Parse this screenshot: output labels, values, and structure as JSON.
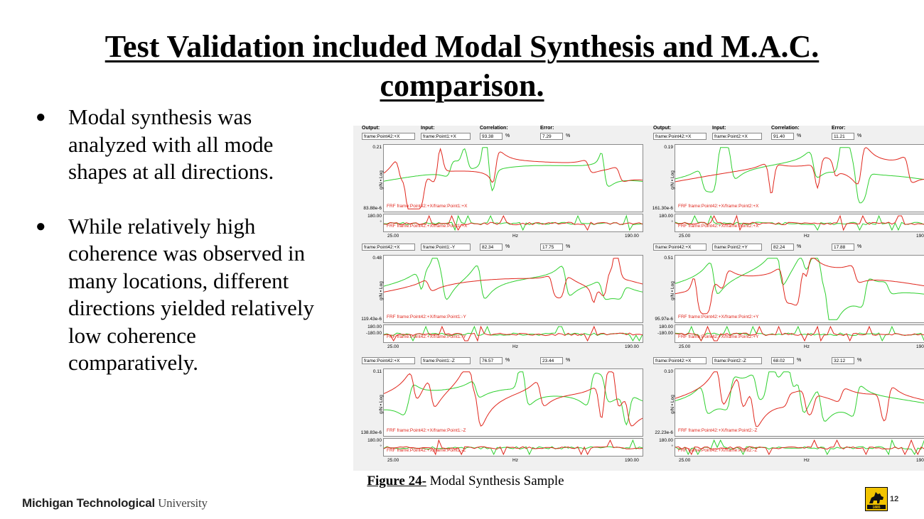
{
  "title": {
    "line1": "Test Validation included Modal Synthesis and M.A.C.",
    "line2": "comparison."
  },
  "bullets": [
    "Modal synthesis was analyzed with all mode shapes at all directions.",
    "While relatively high coherence was observed in many locations, different directions yielded relatively low coherence comparatively."
  ],
  "figure": {
    "headers": {
      "output": "Output:",
      "input": "Input:",
      "correlation": "Correlation:",
      "error": "Error:"
    },
    "percent": "%",
    "ylabel": "g/N • Log",
    "xunit": "Hz",
    "xmin": "25.00",
    "xmax": "190.00",
    "phase_top": "180.00",
    "phase_marker": "°",
    "colors": {
      "frf_test": "#e0261c",
      "frf_synth": "#2fd02f"
    },
    "panels": [
      {
        "output": "frame:Point42:+X",
        "input": "frame:Point1:+X",
        "correlation": "93.38",
        "error": "7.29",
        "ymax": "0.21",
        "ymin": "83.88e-6",
        "phase_bottom": "°",
        "legend": "FRF frame:Point42:+X/frame:Point1:+X"
      },
      {
        "output": "frame:Point42:+X",
        "input": "frame:Point2:+X",
        "correlation": "91.40",
        "error": "11.21",
        "ymax": "0.19",
        "ymin": "161.30e-6",
        "phase_bottom": "°",
        "legend": "FRF frame:Point42:+X/frame:Point2:+X"
      },
      {
        "output": "frame:Point42:+X",
        "input": "frame:Point1:-Y",
        "correlation": "82.34",
        "error": "17.75",
        "ymax": "0.48",
        "ymin": "119.43e-6",
        "phase_bottom": "-180.00",
        "legend": "FRF frame:Point42:+X/frame:Point1:-Y"
      },
      {
        "output": "frame:Point42:+X",
        "input": "frame:Point2:+Y",
        "correlation": "82.24",
        "error": "17.88",
        "ymax": "0.51",
        "ymin": "95.97e-6",
        "phase_bottom": "-180.00",
        "legend": "FRF frame:Point42:+X/frame:Point2:+Y"
      },
      {
        "output": "frame:Point42:+X",
        "input": "frame:Point1:-Z",
        "correlation": "76.57",
        "error": "23.44",
        "ymax": "0.11",
        "ymin": "138.83e-6",
        "phase_bottom": "°",
        "legend": "FRF frame:Point42:+X/frame:Point1:-Z"
      },
      {
        "output": "frame:Point42:+X",
        "input": "frame:Point2:-Z",
        "correlation": "68.02",
        "error": "32.12",
        "ymax": "0.10",
        "ymin": "22.23e-6",
        "phase_bottom": "°",
        "legend": "FRF frame:Point42:+X/frame:Point2:-Z"
      }
    ]
  },
  "caption": {
    "label": "Figure 24-",
    "text": " Modal Synthesis Sample"
  },
  "footer": {
    "logo_bold": "Michigan Technological",
    "logo_regular": " University",
    "page": "12",
    "seal_year": "1885"
  }
}
